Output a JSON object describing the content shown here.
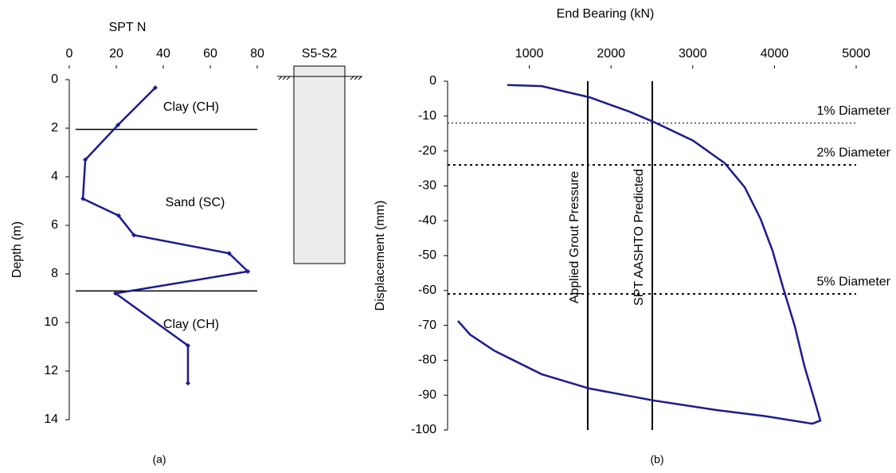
{
  "chart_data": [
    {
      "type": "line",
      "title": "SPT N",
      "y_label": "Depth (m)",
      "caption": "(a)",
      "xlim": [
        0,
        80
      ],
      "xticks": [
        0,
        20,
        40,
        60,
        80
      ],
      "ylim": [
        0,
        14
      ],
      "yticks": [
        0,
        2,
        4,
        6,
        8,
        10,
        12,
        14
      ],
      "y_inverted": true,
      "series": [
        {
          "color": "#1c1c8f",
          "x": [
            36.6,
            20.7,
            6.8,
            5.8,
            21,
            27.5,
            68,
            76,
            19.7,
            50.5,
            50.5
          ],
          "values": [
            0.33,
            1.87,
            3.3,
            4.9,
            5.6,
            6.4,
            7.15,
            7.9,
            8.8,
            10.95,
            12.5
          ]
        }
      ],
      "boundaries": [
        2.05,
        8.7
      ],
      "layers": [
        "Clay (CH)",
        "Sand (SC)",
        "Clay (CH)"
      ],
      "column_label": "S5-S2"
    },
    {
      "type": "line",
      "title": "End Bearing (kN)",
      "y_label": "Displacement (mm)",
      "caption": "(b)",
      "xlim": [
        0,
        5000
      ],
      "xticks": [
        1000,
        2000,
        3000,
        4000,
        5000
      ],
      "ylim": [
        -100,
        0
      ],
      "yticks": [
        0,
        -10,
        -20,
        -30,
        -40,
        -50,
        -60,
        -70,
        -80,
        -90,
        -100
      ],
      "series": [
        {
          "color": "#1c1c8f",
          "x": [
            731,
            1150,
            1735,
            2222,
            2515,
            3002,
            3392,
            3636,
            3830,
            3977,
            4103,
            4250,
            4366,
            4483,
            4561,
            4464,
            3880,
            3294,
            2515,
            1735,
            1150,
            565,
            273,
            127
          ],
          "values": [
            -1.1,
            -1.4,
            -4.6,
            -8.7,
            -11.6,
            -17,
            -23.5,
            -30.4,
            -39.5,
            -48.6,
            -59,
            -70.3,
            -81.7,
            -90.9,
            -97.3,
            -98.2,
            -96,
            -94.3,
            -91.5,
            -88.1,
            -84,
            -77.2,
            -72.6,
            -68.7
          ]
        }
      ],
      "vlines": [
        {
          "value": 1715,
          "label": "Applied Grout Pressure"
        },
        {
          "value": 2505,
          "label": "SPT AASHTO Predicted"
        }
      ],
      "hlines": [
        {
          "value": -12,
          "label": "1% Diameter"
        },
        {
          "value": -24,
          "label": "2% Diameter"
        },
        {
          "value": -61,
          "label": "5% Diameter"
        }
      ]
    }
  ]
}
